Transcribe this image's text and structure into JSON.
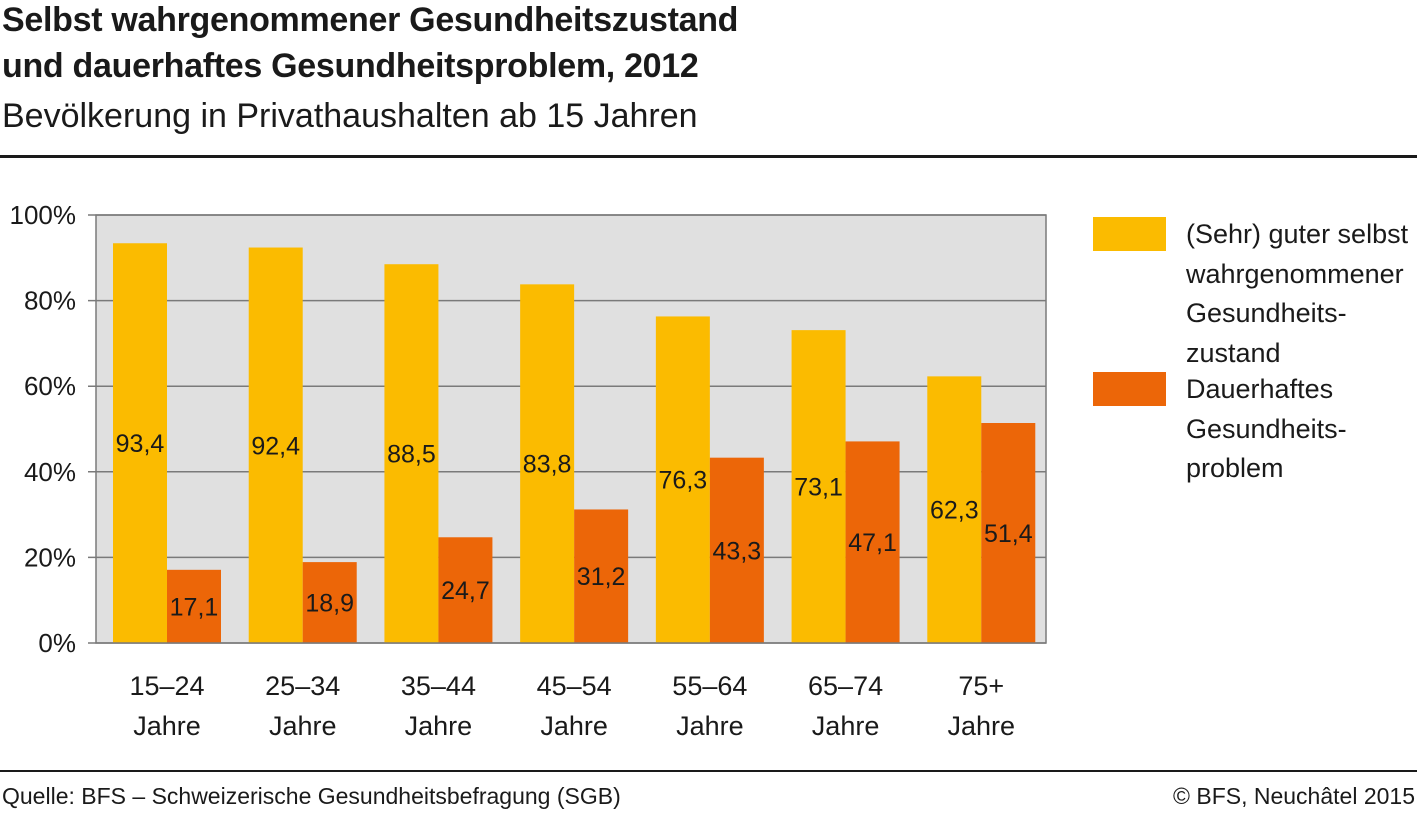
{
  "header": {
    "title_line1": "Selbst wahrgenommener Gesundheitszustand",
    "title_line2": "und dauerhaftes Gesundheitsproblem, 2012",
    "subtitle": "Bevölkerung in Privathaushalten ab 15 Jahren"
  },
  "footer": {
    "source": "Quelle: BFS – Schweizerische Gesundheitsbefragung (SGB)",
    "copyright": "© BFS, Neuchâtel 2015"
  },
  "colors": {
    "series_1": "#fbbb00",
    "series_2": "#ec6608",
    "plot_bg": "#e0e0e0",
    "grid": "#7a7a7a"
  },
  "chart_data": {
    "type": "bar",
    "title": "Selbst wahrgenommener Gesundheitszustand und dauerhaftes Gesundheitsproblem, 2012",
    "subtitle": "Bevölkerung in Privathaushalten ab 15 Jahren",
    "categories": [
      [
        "15–24",
        "Jahre"
      ],
      [
        "25–34",
        "Jahre"
      ],
      [
        "35–44",
        "Jahre"
      ],
      [
        "45–54",
        "Jahre"
      ],
      [
        "55–64",
        "Jahre"
      ],
      [
        "65–74",
        "Jahre"
      ],
      [
        "75+",
        "Jahre"
      ]
    ],
    "series": [
      {
        "name": "(Sehr) guter selbst wahrgenommener Gesundheitszustand",
        "legend_lines": [
          "(Sehr) guter selbst",
          "wahrgenommener",
          "Gesundheits-",
          "zustand"
        ],
        "values": [
          93.4,
          92.4,
          88.5,
          83.8,
          76.3,
          73.1,
          62.3
        ],
        "labels": [
          "93,4",
          "92,4",
          "88,5",
          "83,8",
          "76,3",
          "73,1",
          "62,3"
        ]
      },
      {
        "name": "Dauerhaftes Gesundheitsproblem",
        "legend_lines": [
          "Dauerhaftes",
          "Gesundheits-",
          "problem"
        ],
        "values": [
          17.1,
          18.9,
          24.7,
          31.2,
          43.3,
          47.1,
          51.4
        ],
        "labels": [
          "17,1",
          "18,9",
          "24,7",
          "31,2",
          "43,3",
          "47,1",
          "51,4"
        ]
      }
    ],
    "y_ticks": [
      0,
      20,
      40,
      60,
      80,
      100
    ],
    "y_tick_labels": [
      "0%",
      "20%",
      "40%",
      "60%",
      "80%",
      "100%"
    ],
    "ylim": [
      0,
      100
    ],
    "xlabel": "",
    "ylabel": "",
    "grid": true,
    "legend_position": "right"
  }
}
